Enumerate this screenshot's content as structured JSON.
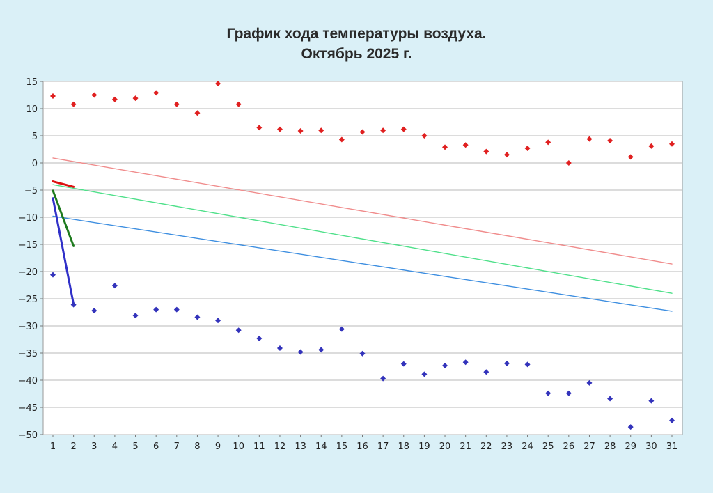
{
  "chart_data": {
    "type": "scatter",
    "title": "График хода температуры воздуха.",
    "subtitle": "Октябрь 2025 г.",
    "xlabel": "",
    "ylabel": "",
    "xlim": [
      1,
      31
    ],
    "ylim": [
      -50,
      15
    ],
    "y_ticks": [
      15,
      10,
      5,
      0,
      -5,
      -10,
      -15,
      -20,
      -25,
      -30,
      -35,
      -40,
      -45,
      -50
    ],
    "x_ticks": [
      1,
      2,
      3,
      4,
      5,
      6,
      7,
      8,
      9,
      10,
      11,
      12,
      13,
      14,
      15,
      16,
      17,
      18,
      19,
      20,
      21,
      22,
      23,
      24,
      25,
      26,
      27,
      28,
      29,
      30,
      31
    ],
    "grid": true,
    "legend": "none",
    "series": [
      {
        "kind": "points",
        "color": "#e02020",
        "x": [
          1,
          2,
          3,
          4,
          5,
          6,
          7,
          8,
          9,
          10,
          11,
          12,
          13,
          14,
          15,
          16,
          17,
          18,
          19,
          20,
          21,
          22,
          23,
          24,
          25,
          26,
          27,
          28,
          29,
          30,
          31
        ],
        "y": [
          12.3,
          10.8,
          12.5,
          11.7,
          11.9,
          12.9,
          10.8,
          9.2,
          14.6,
          10.8,
          6.5,
          6.2,
          5.9,
          6.0,
          4.3,
          5.7,
          6.0,
          6.2,
          5.0,
          2.9,
          3.3,
          2.1,
          1.5,
          2.7,
          3.8,
          0.0,
          4.4,
          4.1,
          1.1,
          3.1,
          3.5
        ]
      },
      {
        "kind": "points",
        "color": "#3333bb",
        "x": [
          1,
          2,
          3,
          4,
          5,
          6,
          7,
          8,
          9,
          10,
          11,
          12,
          13,
          14,
          15,
          16,
          17,
          18,
          19,
          20,
          21,
          22,
          23,
          24,
          25,
          26,
          27,
          28,
          29,
          30,
          31
        ],
        "y": [
          -20.6,
          -26.1,
          -27.2,
          -22.6,
          -28.1,
          -27.0,
          -27.0,
          -28.4,
          -29.0,
          -30.8,
          -32.3,
          -34.1,
          -34.8,
          -34.4,
          -30.6,
          -35.1,
          -39.7,
          -37.0,
          -38.9,
          -37.3,
          -36.7,
          -38.5,
          -36.9,
          -37.1,
          -42.4,
          -42.4,
          -40.5,
          -43.4,
          -48.6,
          -43.8,
          -47.4
        ]
      },
      {
        "kind": "line",
        "color": "#f08c8c",
        "width": 1.4,
        "x": [
          1,
          31
        ],
        "y": [
          0.9,
          -18.6
        ]
      },
      {
        "kind": "line",
        "color": "#4fe08a",
        "width": 1.4,
        "x": [
          1,
          31
        ],
        "y": [
          -4.0,
          -24.0
        ]
      },
      {
        "kind": "line",
        "color": "#3d8ee0",
        "width": 1.4,
        "x": [
          1,
          31
        ],
        "y": [
          -9.8,
          -27.3
        ]
      },
      {
        "kind": "line",
        "color": "#dd1111",
        "width": 3,
        "x": [
          1,
          2
        ],
        "y": [
          -3.4,
          -4.4
        ]
      },
      {
        "kind": "line",
        "color": "#1e7a1e",
        "width": 3,
        "x": [
          1,
          2
        ],
        "y": [
          -5.1,
          -15.3
        ]
      },
      {
        "kind": "line",
        "color": "#3030c8",
        "width": 3,
        "x": [
          1,
          2
        ],
        "y": [
          -6.5,
          -26.0
        ]
      }
    ]
  }
}
